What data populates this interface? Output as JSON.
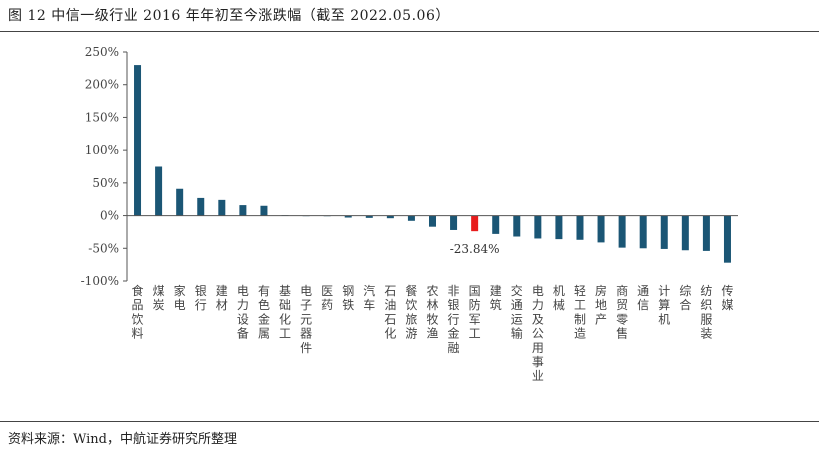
{
  "header": {
    "title": "图 12 中信一级行业 2016 年年初至今涨跌幅（截至 2022.05.06）"
  },
  "footer": {
    "source": "资料来源：Wind，中航证券研究所整理"
  },
  "colors": {
    "bar": "#1b5675",
    "highlight": "#e81c1c",
    "axis": "#555555"
  },
  "chart_data": {
    "type": "bar",
    "title": "中信一级行业 2016 年年初至今涨跌幅（截至 2022.05.06）",
    "xlabel": "",
    "ylabel": "",
    "ylim": [
      -1.0,
      2.5
    ],
    "yticks": [
      -1.0,
      -0.5,
      0.0,
      0.5,
      1.0,
      1.5,
      2.0,
      2.5
    ],
    "ytick_labels": [
      "-100%",
      "-50%",
      "0%",
      "50%",
      "100%",
      "150%",
      "200%",
      "250%"
    ],
    "grid": false,
    "legend": "none",
    "categories": [
      "食品饮料",
      "煤炭",
      "家电",
      "银行",
      "建材",
      "电力设备",
      "有色金属",
      "基础化工",
      "电子元器件",
      "医药",
      "钢铁",
      "汽车",
      "石油石化",
      "餐饮旅游",
      "农林牧渔",
      "非银行金融",
      "国防军工",
      "建筑",
      "交通运输",
      "电力及公用事业",
      "机械",
      "轻工制造",
      "房地产",
      "商贸零售",
      "通信",
      "计算机",
      "综合",
      "纺织服装",
      "传媒"
    ],
    "values": [
      2.3,
      0.75,
      0.41,
      0.27,
      0.24,
      0.16,
      0.15,
      0.005,
      -0.005,
      -0.01,
      -0.03,
      -0.035,
      -0.04,
      -0.08,
      -0.17,
      -0.22,
      -0.2384,
      -0.28,
      -0.32,
      -0.35,
      -0.36,
      -0.37,
      -0.41,
      -0.49,
      -0.5,
      -0.51,
      -0.53,
      -0.54,
      -0.72
    ],
    "highlight_index": 16,
    "annotations": [
      {
        "text": "-23.84%",
        "category": "国防军工"
      }
    ]
  }
}
